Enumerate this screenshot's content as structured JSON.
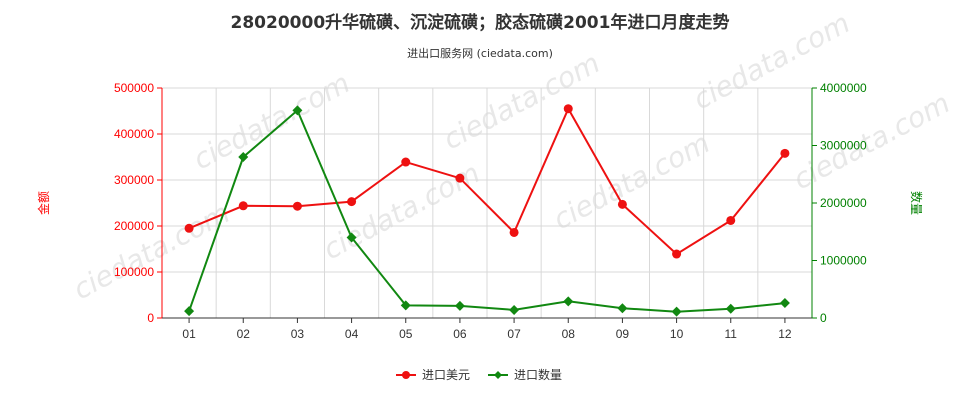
{
  "chart_data": {
    "type": "line",
    "title": "28020000升华硫磺、沉淀硫磺；胶态硫磺2001年进口月度走势",
    "subtitle": "进出口服务网 (ciedata.com)",
    "categories": [
      "01",
      "02",
      "03",
      "04",
      "05",
      "06",
      "07",
      "08",
      "09",
      "10",
      "11",
      "12"
    ],
    "y_left": {
      "label": "金额",
      "range": [
        0,
        500000
      ],
      "ticks": [
        "0",
        "100000",
        "200000",
        "300000",
        "400000",
        "500000"
      ],
      "color": "#ff0000"
    },
    "y_right": {
      "label": "数量",
      "range": [
        0,
        4000000
      ],
      "ticks": [
        "0",
        "1000000",
        "2000000",
        "3000000",
        "4000000"
      ],
      "color": "#008000"
    },
    "series": [
      {
        "name": "进口美元",
        "axis": "left",
        "color": "#ee1111",
        "values": [
          195000,
          244000,
          243000,
          253000,
          339000,
          304000,
          186000,
          455000,
          247000,
          139000,
          212000,
          358000
        ]
      },
      {
        "name": "进口数量",
        "axis": "right",
        "color": "#118811",
        "values": [
          120000,
          2800000,
          3610000,
          1400000,
          220000,
          210000,
          140000,
          290000,
          170000,
          110000,
          160000,
          260000
        ]
      }
    ],
    "grid": true,
    "legend_position": "bottom"
  }
}
